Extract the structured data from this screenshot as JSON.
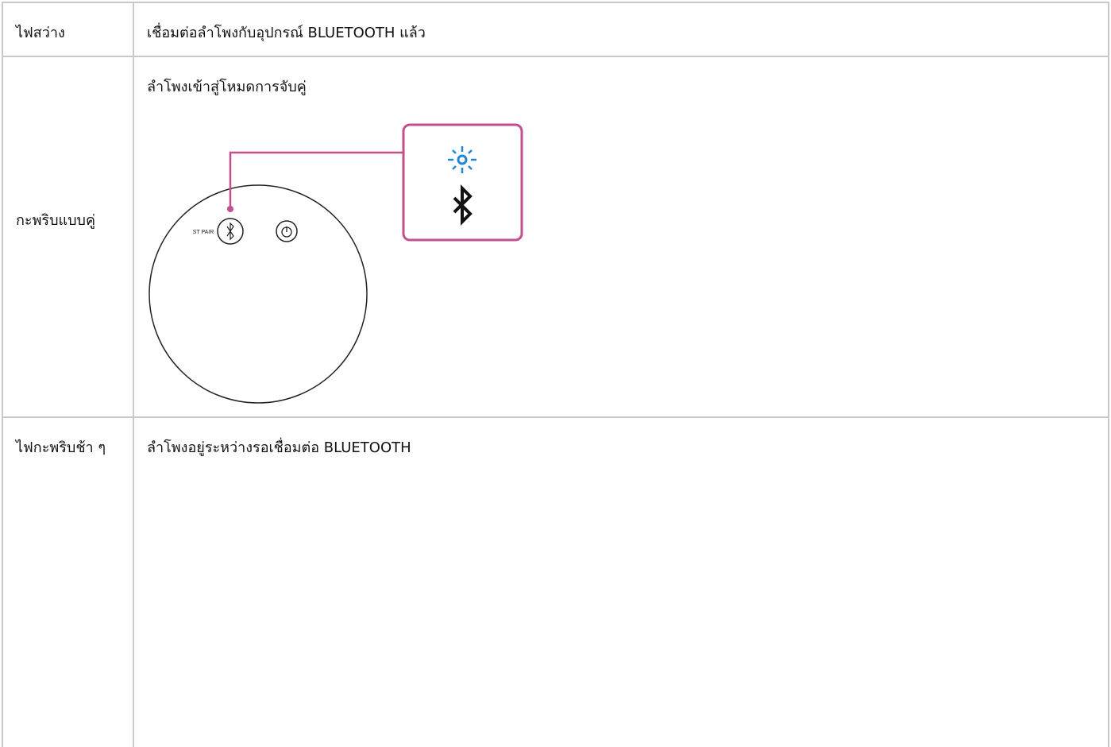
{
  "table": {
    "rows": [
      [
        "ไฟสว่าง",
        "เชื่อมต่อลำโพงกับอุปกรณ์ BLUETOOTH แล้ว"
      ],
      [
        "กะพริบแบบคู่",
        "ลำโพงเข้าสู่โหมดการจับคู่"
      ],
      [
        "ไฟกะพริบช้า ๆ",
        "ลำโพงอยู่ระหว่างรอเชื่อมต่อ BLUETOOTH"
      ]
    ]
  },
  "illustration": {
    "button_label": "ST PAIR"
  }
}
